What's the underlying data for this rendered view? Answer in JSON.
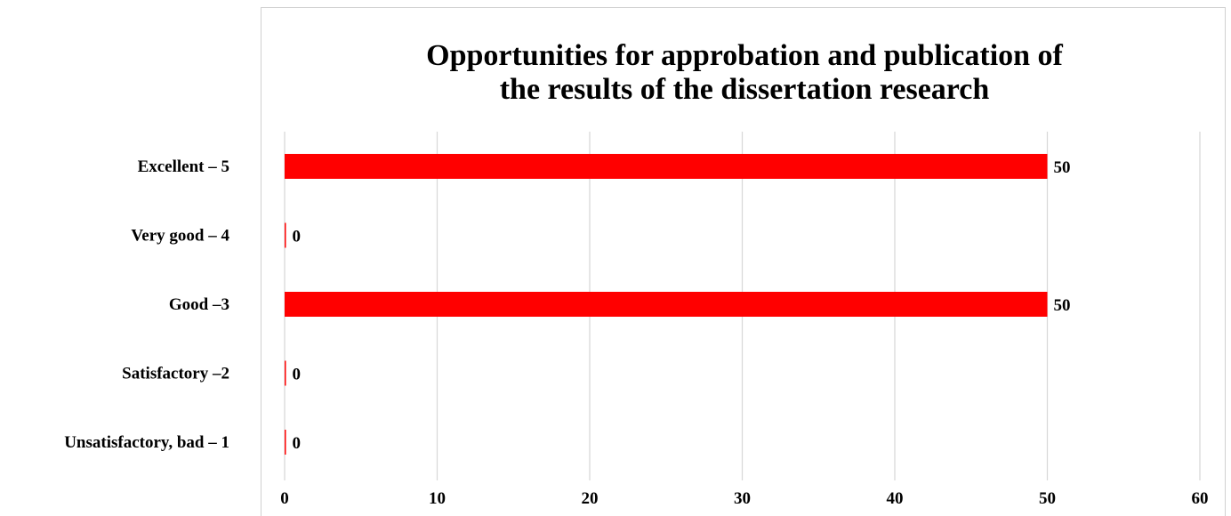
{
  "chart_data": {
    "type": "bar",
    "orientation": "horizontal",
    "title": [
      "Opportunities for approbation and publication of",
      "the results of the dissertation research"
    ],
    "categories": [
      "Excellent – 5",
      "Very good – 4",
      "Good –3",
      "Satisfactory –2",
      "Unsatisfactory, bad – 1"
    ],
    "values": [
      50,
      0,
      50,
      0,
      0
    ],
    "xlim": [
      0,
      60
    ],
    "xticks": [
      0,
      10,
      20,
      30,
      40,
      50,
      60
    ],
    "grid": true,
    "bar_color": "#ff0000",
    "data_labels": true
  }
}
